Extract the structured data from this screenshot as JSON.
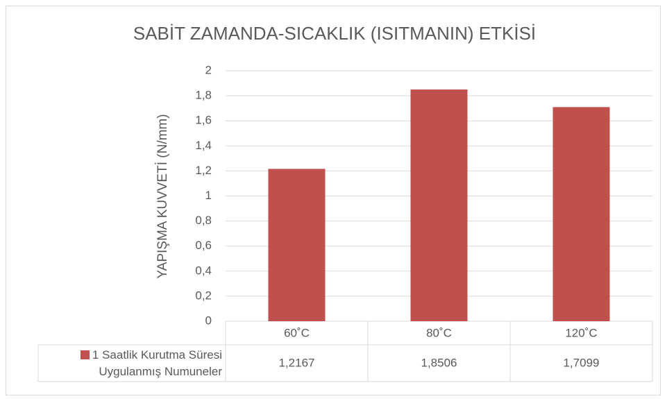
{
  "chart_data": {
    "type": "bar",
    "title": "SABİT ZAMANDA-SICAKLIK (ISITMANIN) ETKİSİ",
    "y_label": "YAPIŞMA KUVVETİ (N/mm)",
    "categories": [
      "60˚C",
      "80˚C",
      "120˚C"
    ],
    "series": [
      {
        "name": "1 Saatlik Kurutma Süresi Uygulanmış Numuneler",
        "color": "#c0504d",
        "values": [
          1.2167,
          1.8506,
          1.7099
        ],
        "value_labels": [
          "1,2167",
          "1,8506",
          "1,7099"
        ]
      }
    ],
    "ylim": [
      0,
      2
    ],
    "yticks": [
      0,
      {
        "value": 0.2,
        "label": "0,2"
      },
      {
        "value": 0.4,
        "label": "0,4"
      },
      {
        "value": 0.6,
        "label": "0,6"
      },
      {
        "value": 0.8,
        "label": "0,8"
      },
      1,
      {
        "value": 1.2,
        "label": "1,2"
      },
      {
        "value": 1.4,
        "label": "1,4"
      },
      {
        "value": 1.6,
        "label": "1,6"
      },
      {
        "value": 1.8,
        "label": "1,8"
      },
      2
    ],
    "grid": true
  }
}
